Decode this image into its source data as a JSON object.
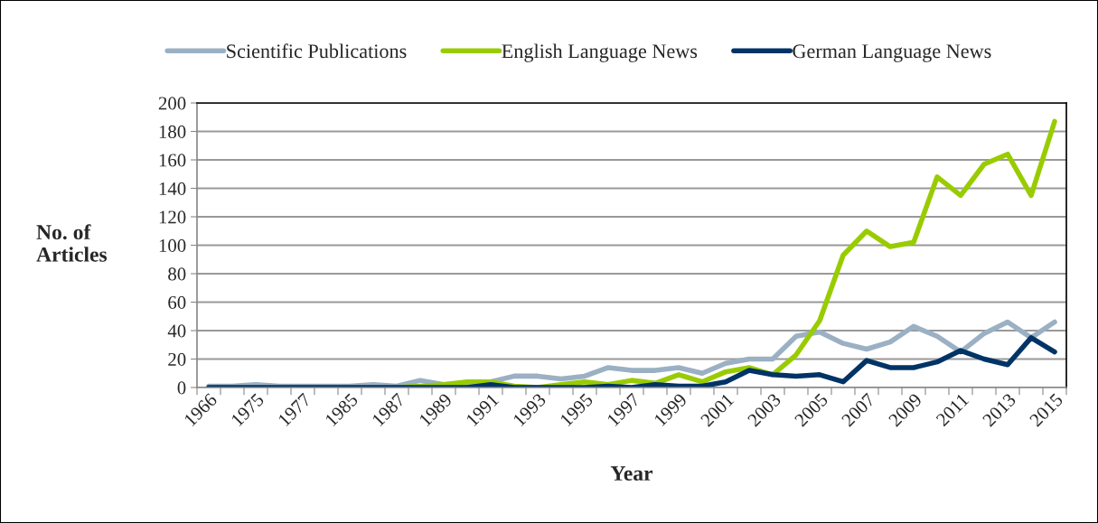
{
  "chart_data": {
    "type": "line",
    "xlabel": "Year",
    "ylabel": "No. of\nArticles",
    "categories": [
      "1966",
      null,
      "1975",
      null,
      "1977",
      null,
      "1985",
      null,
      "1987",
      null,
      "1989",
      null,
      "1991",
      null,
      "1993",
      null,
      "1995",
      null,
      "1997",
      null,
      "1999",
      null,
      "2001",
      null,
      "2003",
      null,
      "2005",
      null,
      "2007",
      null,
      "2009",
      null,
      "2011",
      null,
      "2013",
      null,
      "2015"
    ],
    "series": [
      {
        "name": "Scientific Publications",
        "color": "#9bb0c3",
        "values": [
          1,
          1,
          2,
          1,
          1,
          1,
          1,
          2,
          1,
          5,
          2,
          3,
          4,
          8,
          8,
          6,
          8,
          14,
          12,
          12,
          14,
          10,
          17,
          20,
          20,
          36,
          39,
          31,
          27,
          32,
          43,
          36,
          25,
          38,
          46,
          35,
          46
        ]
      },
      {
        "name": "English Language News",
        "color": "#99cc00",
        "values": [
          null,
          null,
          null,
          null,
          null,
          null,
          null,
          null,
          0,
          1,
          2,
          4,
          4,
          1,
          0,
          2,
          4,
          2,
          5,
          3,
          9,
          4,
          11,
          14,
          9,
          23,
          47,
          93,
          110,
          99,
          102,
          148,
          135,
          157,
          164,
          135,
          187
        ]
      },
      {
        "name": "German Language News",
        "color": "#003366",
        "values": [
          0,
          0,
          0,
          0,
          0,
          0,
          0,
          0,
          0,
          0,
          0,
          0,
          2,
          0,
          0,
          0,
          0,
          1,
          0,
          2,
          1,
          1,
          4,
          12,
          9,
          8,
          9,
          4,
          19,
          14,
          14,
          18,
          26,
          20,
          16,
          35,
          25
        ]
      }
    ],
    "ylim": [
      0,
      200
    ],
    "yticks": [
      0,
      20,
      40,
      60,
      80,
      100,
      120,
      140,
      160,
      180,
      200
    ],
    "grid": "y",
    "legend": "top",
    "marker": "none",
    "line_style": "solid"
  }
}
